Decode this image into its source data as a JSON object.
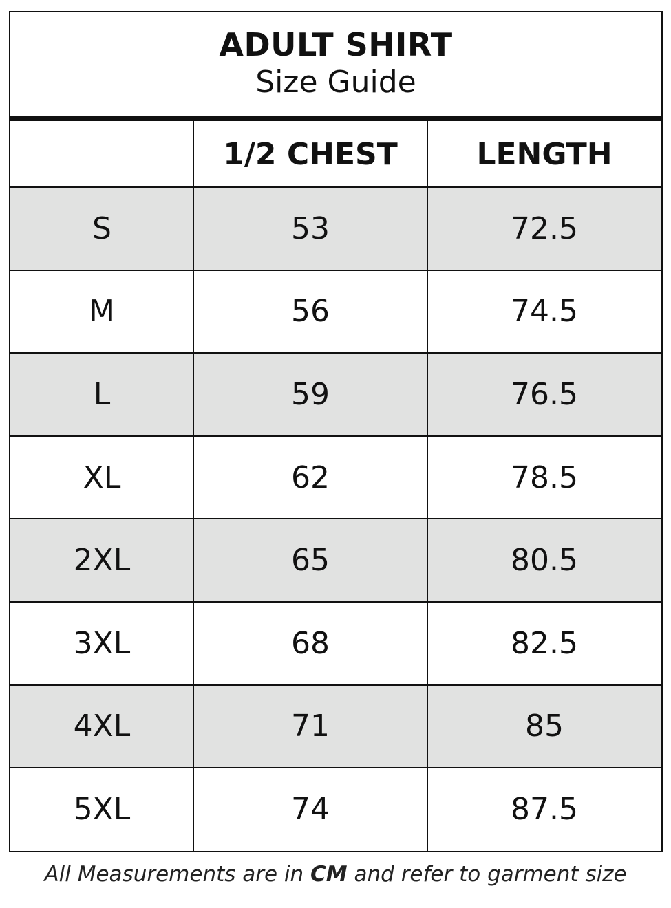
{
  "header": {
    "title": "ADULT SHIRT",
    "subtitle": "Size Guide"
  },
  "table": {
    "columns": [
      "1/2 CHEST",
      "LENGTH"
    ],
    "rows": [
      [
        "S",
        53,
        72.5
      ],
      [
        "M",
        56,
        74.5
      ],
      [
        "L",
        59,
        76.5
      ],
      [
        "XL",
        62,
        78.5
      ],
      [
        "2XL",
        65,
        80.5
      ],
      [
        "3XL",
        68,
        82.5
      ],
      [
        "4XL",
        71,
        85
      ],
      [
        "5XL",
        74,
        87.5
      ]
    ]
  },
  "footnote": {
    "before": "All Measurements are in",
    "unit": "CM",
    "after": "and refer to garment size"
  }
}
